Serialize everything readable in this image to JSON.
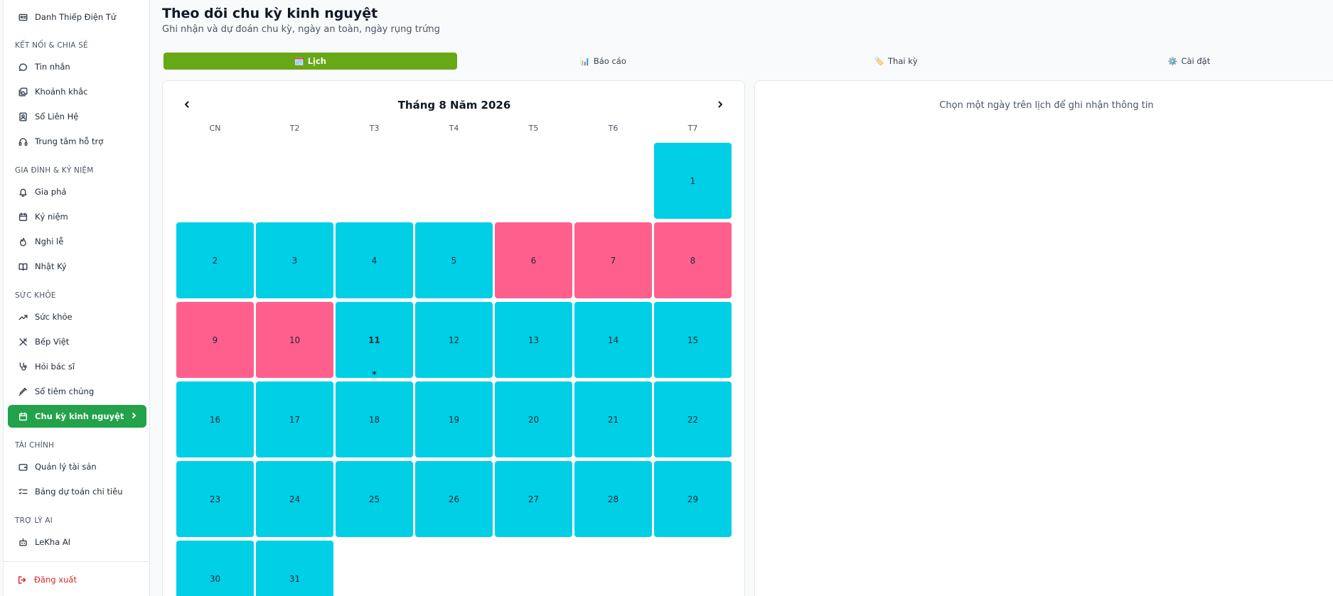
{
  "sidebar": {
    "top_item": "Danh Thiếp Điện Tử",
    "sections": [
      {
        "label": "KẾT NỐI & CHIA SẺ",
        "items": [
          "Tin nhắn",
          "Khoảnh khắc",
          "Sổ Liên Hệ",
          "Trung tâm hỗ trợ"
        ]
      },
      {
        "label": "GIA ĐÌNH & KỶ NIỆM",
        "items": [
          "Gia phả",
          "Kỷ niệm",
          "Nghi lễ",
          "Nhật Ký"
        ]
      },
      {
        "label": "SỨC KHỎE",
        "items": [
          "Sức khỏe",
          "Bếp Việt",
          "Hỏi bác sĩ",
          "Sổ tiêm chủng",
          "Chu kỳ kinh nguyệt"
        ]
      },
      {
        "label": "TÀI CHÍNH",
        "items": [
          "Quản lý tài sản",
          "Bảng dự toán chi tiêu"
        ]
      },
      {
        "label": "TRỢ LÝ AI",
        "items": [
          "LeKha AI"
        ]
      }
    ],
    "active_item": "Chu kỳ kinh nguyệt",
    "logout": "Đăng xuất"
  },
  "header": {
    "title": "Theo dõi chu kỳ kinh nguyệt",
    "subtitle": "Ghi nhận và dự đoán chu kỳ, ngày an toàn, ngày rụng trứng"
  },
  "tabs": [
    {
      "icon": "🗓️",
      "label": "Lịch",
      "active": true
    },
    {
      "icon": "📊",
      "label": "Báo cáo",
      "active": false
    },
    {
      "icon": "🏷️",
      "label": "Thai kỳ",
      "active": false
    },
    {
      "icon": "⚙️",
      "label": "Cài đặt",
      "active": false
    }
  ],
  "calendar": {
    "month_title": "Tháng 8 Năm 2026",
    "weekdays": [
      "CN",
      "T2",
      "T3",
      "T4",
      "T5",
      "T6",
      "T7"
    ],
    "first_weekday_index": 6,
    "days_in_month": 31,
    "period_days": [
      6,
      7,
      8,
      9,
      10
    ],
    "today": 11,
    "today_marker": "*",
    "colors": {
      "normal": "#00cfe6",
      "period": "#ff5f8d"
    }
  },
  "info_panel": {
    "prompt": "Chọn một ngày trên lịch để ghi nhận thông tin"
  },
  "colors": {
    "active_nav": "#22a24a",
    "active_tab": "#66a815",
    "logout": "#dc2626"
  }
}
